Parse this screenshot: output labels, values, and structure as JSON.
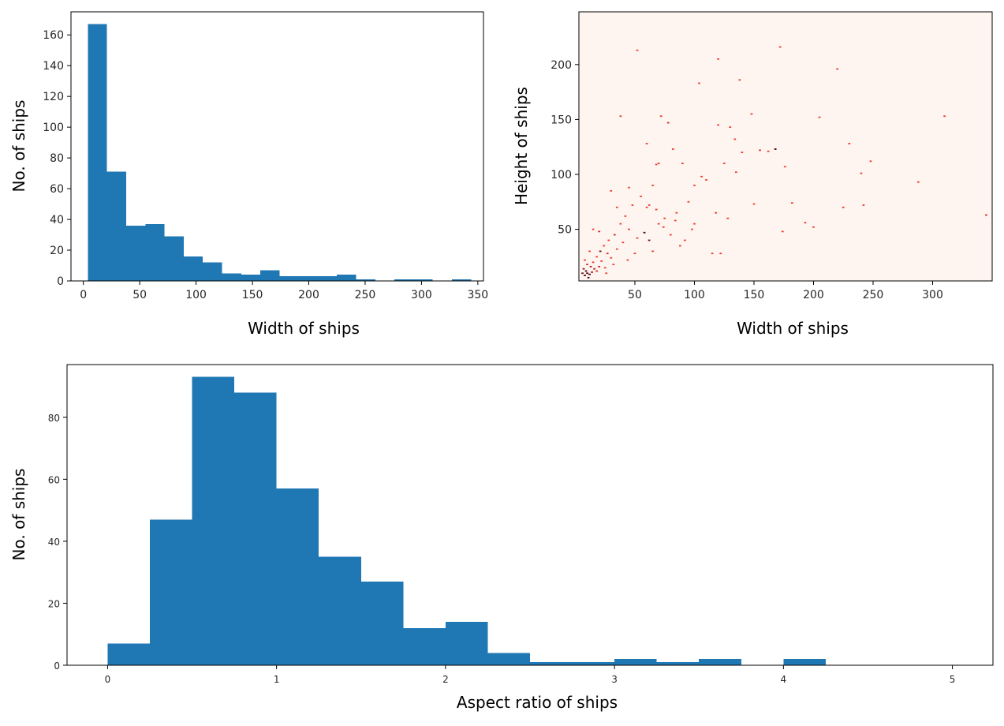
{
  "chart_data": [
    {
      "type": "bar",
      "xlabel": "Width of ships",
      "ylabel": "No. of ships",
      "xlim": [
        -11,
        355
      ],
      "ylim": [
        0,
        175
      ],
      "xticks": [
        0,
        50,
        100,
        150,
        200,
        250,
        300,
        350
      ],
      "yticks": [
        0,
        20,
        40,
        60,
        80,
        100,
        120,
        140,
        160
      ],
      "color": "#1f77b4",
      "bin_edges": [
        4,
        21,
        38,
        55,
        72,
        89,
        106,
        123,
        140,
        157,
        174,
        191,
        208,
        225,
        242,
        259,
        276,
        293,
        310,
        327,
        344
      ],
      "values": [
        167,
        71,
        36,
        37,
        29,
        16,
        12,
        5,
        4,
        7,
        3,
        3,
        3,
        4,
        1,
        0,
        1,
        1,
        0,
        1
      ]
    },
    {
      "type": "heatmap",
      "xlabel": "Width of ships",
      "ylabel": "Height of ships",
      "xlim": [
        3,
        350
      ],
      "ylim": [
        3,
        248
      ],
      "xticks": [
        50,
        100,
        150,
        200,
        250,
        300
      ],
      "yticks": [
        50,
        100,
        150,
        200
      ],
      "colormap": "Reds",
      "background_color": "#fff5f0",
      "cell_width": 1.8,
      "cell_height": 1.3,
      "points": [
        [
          8,
          8,
          1
        ],
        [
          10,
          10,
          1
        ],
        [
          12,
          9,
          1
        ],
        [
          9,
          12,
          1
        ],
        [
          14,
          11,
          0.8
        ],
        [
          7,
          14,
          0.8
        ],
        [
          11,
          6,
          1
        ],
        [
          16,
          14,
          0.7
        ],
        [
          13,
          16,
          0.7
        ],
        [
          18,
          12,
          0.6
        ],
        [
          6,
          10,
          0.9
        ],
        [
          10,
          18,
          0.6
        ],
        [
          20,
          16,
          0.6
        ],
        [
          15,
          20,
          0.5
        ],
        [
          22,
          21,
          0.5
        ],
        [
          25,
          15,
          0.5
        ],
        [
          8,
          22,
          0.5
        ],
        [
          18,
          25,
          0.5
        ],
        [
          27,
          28,
          0.6
        ],
        [
          21,
          30,
          0.9
        ],
        [
          30,
          24,
          0.5
        ],
        [
          24,
          35,
          0.5
        ],
        [
          12,
          30,
          0.5
        ],
        [
          28,
          40,
          0.5
        ],
        [
          35,
          32,
          0.5
        ],
        [
          33,
          45,
          0.6
        ],
        [
          40,
          38,
          0.5
        ],
        [
          15,
          50,
          0.5
        ],
        [
          20,
          48,
          0.6
        ],
        [
          38,
          55,
          0.5
        ],
        [
          45,
          50,
          0.5
        ],
        [
          52,
          42,
          0.5
        ],
        [
          58,
          47,
          1
        ],
        [
          62,
          40,
          0.9
        ],
        [
          70,
          55,
          0.5
        ],
        [
          75,
          60,
          0.5
        ],
        [
          80,
          45,
          0.5
        ],
        [
          85,
          65,
          0.5
        ],
        [
          60,
          70,
          0.5
        ],
        [
          55,
          80,
          0.5
        ],
        [
          48,
          72,
          0.5
        ],
        [
          42,
          62,
          0.5
        ],
        [
          35,
          70,
          0.5
        ],
        [
          30,
          85,
          0.5
        ],
        [
          65,
          90,
          0.5
        ],
        [
          70,
          110,
          0.5
        ],
        [
          90,
          110,
          0.5
        ],
        [
          95,
          75,
          0.5
        ],
        [
          100,
          55,
          0.5
        ],
        [
          110,
          95,
          0.5
        ],
        [
          115,
          28,
          0.5
        ],
        [
          118,
          65,
          0.5
        ],
        [
          120,
          145,
          0.5
        ],
        [
          125,
          110,
          0.5
        ],
        [
          130,
          143,
          0.5
        ],
        [
          135,
          102,
          0.5
        ],
        [
          140,
          120,
          0.5
        ],
        [
          148,
          155,
          0.5
        ],
        [
          150,
          73,
          0.5
        ],
        [
          155,
          122,
          0.6
        ],
        [
          162,
          121,
          0.5
        ],
        [
          168,
          123,
          1
        ],
        [
          172,
          216,
          0.5
        ],
        [
          174,
          48,
          0.5
        ],
        [
          176,
          107,
          0.5
        ],
        [
          182,
          74,
          0.5
        ],
        [
          193,
          56,
          0.5
        ],
        [
          200,
          52,
          0.5
        ],
        [
          205,
          152,
          0.5
        ],
        [
          220,
          196,
          0.5
        ],
        [
          225,
          70,
          0.5
        ],
        [
          230,
          128,
          0.5
        ],
        [
          240,
          101,
          0.5
        ],
        [
          242,
          72,
          0.5
        ],
        [
          248,
          112,
          0.5
        ],
        [
          288,
          93,
          0.5
        ],
        [
          310,
          153,
          0.5
        ],
        [
          345,
          63,
          0.6
        ],
        [
          52,
          213,
          0.5
        ],
        [
          120,
          205,
          0.5
        ],
        [
          104,
          183,
          0.5
        ],
        [
          138,
          186,
          0.5
        ],
        [
          78,
          147,
          0.6
        ],
        [
          82,
          123,
          0.5
        ],
        [
          106,
          98,
          0.5
        ],
        [
          72,
          153,
          0.5
        ],
        [
          38,
          153,
          0.5
        ],
        [
          128,
          60,
          0.5
        ],
        [
          88,
          35,
          0.5
        ],
        [
          92,
          40,
          0.5
        ],
        [
          65,
          30,
          0.5
        ],
        [
          50,
          28,
          0.5
        ],
        [
          44,
          22,
          0.5
        ],
        [
          32,
          18,
          0.5
        ],
        [
          26,
          10,
          0.5
        ],
        [
          62,
          72,
          0.5
        ],
        [
          68,
          68,
          0.5
        ],
        [
          74,
          52,
          0.5
        ],
        [
          84,
          58,
          0.5
        ],
        [
          98,
          50,
          0.5
        ],
        [
          45,
          88,
          0.5
        ],
        [
          100,
          90,
          0.5
        ],
        [
          122,
          28,
          0.5
        ],
        [
          134,
          132,
          0.5
        ],
        [
          60,
          128,
          0.5
        ],
        [
          68,
          109,
          0.5
        ]
      ]
    },
    {
      "type": "bar",
      "xlabel": "Aspect ratio of ships",
      "ylabel": "No. of ships",
      "xlim": [
        -0.24,
        5.24
      ],
      "ylim": [
        0,
        97
      ],
      "xticks": [
        0,
        1,
        2,
        3,
        4,
        5
      ],
      "yticks": [
        0,
        20,
        40,
        60,
        80
      ],
      "color": "#1f77b4",
      "bin_edges": [
        0,
        0.25,
        0.5,
        0.75,
        1.0,
        1.25,
        1.5,
        1.75,
        2.0,
        2.25,
        2.5,
        2.75,
        3.0,
        3.25,
        3.5,
        3.75,
        4.0,
        4.25,
        4.5,
        4.75,
        5.0
      ],
      "values": [
        7,
        47,
        93,
        88,
        57,
        35,
        27,
        12,
        14,
        4,
        1,
        1,
        2,
        1,
        2,
        0,
        2,
        0,
        0,
        0
      ]
    }
  ]
}
